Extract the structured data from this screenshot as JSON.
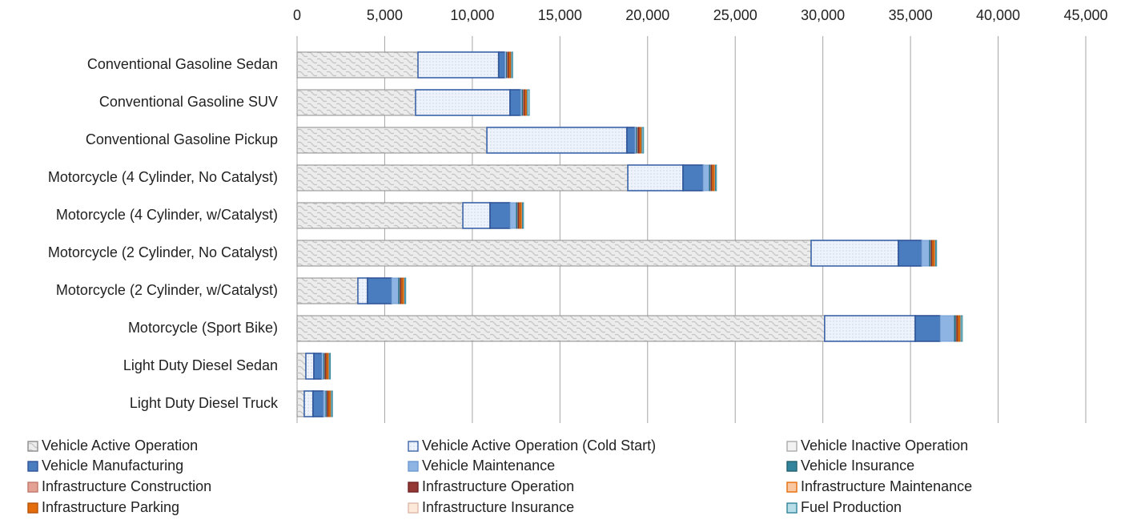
{
  "chart_data": {
    "type": "bar",
    "orientation": "horizontal",
    "stacked": true,
    "categories": [
      "Conventional Gasoline Sedan",
      "Conventional Gasoline SUV",
      "Conventional Gasoline Pickup",
      "Motorcycle (4 Cylinder, No Catalyst)",
      "Motorcycle (4 Cylinder, w/Catalyst)",
      "Motorcycle (2 Cylinder, No Catalyst)",
      "Motorcycle (2 Cylinder, w/Catalyst)",
      "Motorcycle (Sport Bike)",
      "Light Duty Diesel Sedan",
      "Light Duty Diesel Truck"
    ],
    "xlim": [
      0,
      45000
    ],
    "xticks": [
      0,
      {
        "value": 5000,
        "label": "5,000"
      },
      {
        "value": 10000,
        "label": "10,000"
      },
      {
        "value": 15000,
        "label": "15,000"
      },
      {
        "value": 20000,
        "label": "20,000"
      },
      {
        "value": 25000,
        "label": "25,000"
      },
      {
        "value": 30000,
        "label": "30,000"
      },
      {
        "value": 35000,
        "label": "35,000"
      },
      {
        "value": 40000,
        "label": "40,000"
      },
      {
        "value": 45000,
        "label": "45,000"
      }
    ],
    "grid": true,
    "legend": "bottom",
    "series": [
      {
        "name": "Vehicle Active Operation",
        "color": "#e4e4e4",
        "values": [
          6900,
          6760,
          10830,
          18870,
          9460,
          29330,
          3470,
          30100,
          500,
          410
        ]
      },
      {
        "name": "Vehicle Active Operation (Cold Start)",
        "color": "#eef2fa",
        "values": [
          4600,
          5390,
          7990,
          3150,
          1550,
          4980,
          550,
          5170,
          460,
          500
        ]
      },
      {
        "name": "Vehicle Inactive Operation",
        "color": "#f2f2f2",
        "values": [
          0,
          0,
          0,
          0,
          0,
          0,
          0,
          0,
          0,
          0
        ]
      },
      {
        "name": "Vehicle Manufacturing",
        "color": "#4a7cc0",
        "values": [
          350,
          600,
          450,
          1140,
          1140,
          1320,
          1370,
          1420,
          450,
          590
        ]
      },
      {
        "name": "Vehicle Maintenance",
        "color": "#8db4e2",
        "values": [
          100,
          100,
          100,
          370,
          370,
          460,
          410,
          820,
          120,
          150
        ]
      },
      {
        "name": "Vehicle Insurance",
        "color": "#31849b",
        "values": [
          50,
          60,
          60,
          80,
          80,
          80,
          80,
          100,
          60,
          60
        ]
      },
      {
        "name": "Infrastructure Construction",
        "color": "#e6a195",
        "values": [
          50,
          50,
          50,
          40,
          40,
          40,
          40,
          40,
          40,
          40
        ]
      },
      {
        "name": "Infrastructure Operation",
        "color": "#953735",
        "values": [
          60,
          60,
          80,
          50,
          50,
          50,
          50,
          60,
          60,
          60
        ]
      },
      {
        "name": "Infrastructure Maintenance",
        "color": "#fac8a0",
        "values": [
          50,
          50,
          50,
          50,
          50,
          50,
          50,
          50,
          50,
          50
        ]
      },
      {
        "name": "Infrastructure Parking",
        "color": "#e46c0a",
        "values": [
          60,
          60,
          60,
          100,
          100,
          100,
          100,
          100,
          80,
          80
        ]
      },
      {
        "name": "Infrastructure Insurance",
        "color": "#fde9d9",
        "values": [
          20,
          20,
          20,
          20,
          20,
          20,
          20,
          20,
          20,
          20
        ]
      },
      {
        "name": "Fuel Production",
        "color": "#b7dee8",
        "values": [
          60,
          100,
          80,
          60,
          60,
          60,
          60,
          80,
          60,
          60
        ]
      }
    ]
  }
}
